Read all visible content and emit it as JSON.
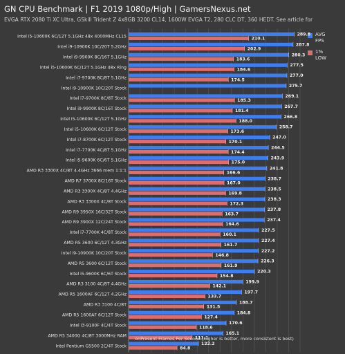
{
  "header": {
    "title": "GN CPU Benchmark | F1 2019 1080p/High | GamersNexus.net",
    "subtitle": "EVGA RTX 2080 Ti XC Ultra, GSkill Trident Z 4x8GB 3200 CL14, 1600W EVGA T2, 280 CLC DT, 360 HEDT. See article for"
  },
  "legend": [
    {
      "label": "AVG FPS",
      "color": "#3d7ef2"
    },
    {
      "label": "1% LOW",
      "color": "#e06c6c"
    }
  ],
  "chart_data": {
    "type": "bar",
    "orientation": "horizontal",
    "title": "GN CPU Benchmark | F1 2019 1080p/High | GamersNexus.net",
    "xlabel": "onPresent Frames Per Second (higher is better, more consistent is best)",
    "xlim": [
      0,
      300
    ],
    "xticks": [
      "0.0",
      "20.0",
      "40.0",
      "60.0",
      "80.0",
      "100.0",
      "120.0",
      "140.0",
      "160.0",
      "180.0",
      "200.0",
      "220.0",
      "240.0",
      "260.0",
      "280.0",
      "300.0"
    ],
    "categories": [
      "Intel i5-10600K 6C/12T 5.1GHz 48x 4000MHz CL15",
      "Intel i9-10900K 10C/20T 5.2GHz",
      "Intel i9-9900K 8C/16T 5.1GHz",
      "Intel i5-10600K 6C/12T 5.1GHz 48x Ring",
      "Intel i7-9700K 8C/8T 5.1GHz",
      "Intel i9-10900K 10C/20T Stock",
      "Intel i7-9700K 8C/8T Stock",
      "Intel i9-9900K 8C/16T Stock",
      "Intel i5-10600K 6C/12T 5.1GHz",
      "Intel i5-10600K 6C/12T Stock",
      "Intel i7-8700K 6C/12T Stock",
      "Intel i7-7700K 4C/8T 5.1GHz",
      "Intel i5-9600K 6C/6T 5.1GHz",
      "AMD R3 3300X 4C/8T 4.4GHz 3666 mem 1:1:1",
      "AMD R7 3700X 8C/16T Stock",
      "AMD R3 3300X 4C/8T 4.4GHz",
      "AMD R3 3300X 4C/8T Stock",
      "AMD R9 3950X 16C/32T Stock",
      "AMD R9 3900X 12C/24T Stock",
      "Intel i7-7700K 4C/8T Stock",
      "AMD R5 3600 6C/12T 4.3GHz",
      "Intel i9-10900K 10C/20T Stock",
      "AMD R5 3600 6C/12T Stock",
      "Intel i5-9600K 6C/6T Stock",
      "AMD R3 3100 4C/8T 4.4GHz",
      "AMD R5 1600AF 6C/12T 4.2GHz",
      "AMD R3 3100 4C/8T",
      "AMD R5 1600AF 6C/12T Stock",
      "Intel i3-9100F 4C/4T Stock",
      "AMD R5 3400G 4C/8T 3000MHz RAM",
      "Intel Pentium G5500 2C/4T Stock"
    ],
    "series": [
      {
        "name": "AVG FPS",
        "color": "#3d7ef2",
        "values": [
          289.8,
          287.8,
          280.3,
          277.5,
          277.0,
          275.7,
          269.1,
          267.7,
          266.8,
          258.7,
          247.0,
          244.5,
          243.9,
          241.8,
          238.7,
          238.5,
          238.3,
          237.8,
          237.4,
          227.5,
          227.4,
          227.2,
          226.3,
          220.3,
          199.9,
          197.7,
          188.7,
          184.8,
          170.6,
          165.1,
          122.2
        ],
        "labels": [
          "289.8",
          "287.8",
          "280.3",
          "277.5",
          "277.0",
          "275.7",
          "269.1",
          "267.7",
          "266.8",
          "258.7",
          "247.0",
          "244.5",
          "243.9",
          "241.8",
          "238.7",
          "238.5",
          "238.3",
          "237.8",
          "237.4",
          "227.5",
          "227.4",
          "227.2",
          "226.3",
          "220.3",
          "199.9",
          "197.7",
          "188.7",
          "184.8",
          "170.6",
          "165.1",
          "122.2"
        ]
      },
      {
        "name": "1% LOW",
        "color": "#e06c6c",
        "values": [
          210.1,
          202.9,
          183.6,
          184.6,
          174.5,
          null,
          185.3,
          181.4,
          188.0,
          173.6,
          170.1,
          174.4,
          175.0,
          166.6,
          167.0,
          169.8,
          172.3,
          163.7,
          164.6,
          160.1,
          161.7,
          146.8,
          161.9,
          154.8,
          142.1,
          133.7,
          131.5,
          127.4,
          118.6,
          111.1,
          84.8
        ],
        "labels": [
          "210.1",
          "202.9",
          "183.6",
          "184.6",
          "174.5",
          "",
          "185.3",
          "181.4",
          "188.0",
          "173.6",
          "170.1",
          "174.4",
          "175.0",
          "166.6",
          "167.0",
          "169.8",
          "172.3",
          "163.7",
          "164.6",
          "160.1",
          "161.7",
          "146.8",
          "161.9",
          "154.8",
          "142.1",
          "133.7",
          "131.5",
          "127.4",
          "118.6",
          "111.1",
          "84.8"
        ]
      }
    ],
    "legend_position": "top-right",
    "grid": true
  }
}
